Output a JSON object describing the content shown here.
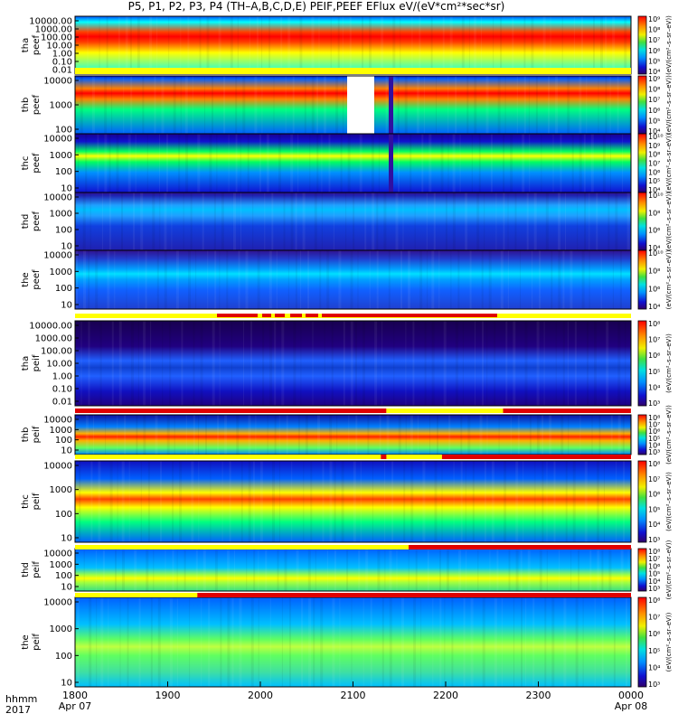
{
  "header": {
    "title": "P5, P1, P2, P3, P4 (TH–A,B,C,D,E) PEIF,PEEF EFlux eV/(eV*cm²*sec*sr)"
  },
  "footer": {
    "time_label": "hhmm",
    "year_label": "2017"
  },
  "chart_data": {
    "type": "heatmap",
    "x_axis": {
      "ticks": [
        "1800",
        "1900",
        "2000",
        "2100",
        "2200",
        "2300",
        "0000"
      ],
      "date_labels": [
        "Apr 07",
        "",
        "",
        "",
        "",
        "",
        "Apr 08"
      ],
      "range": [
        "2017-04-07 18:00",
        "2017-04-08 00:00"
      ]
    },
    "colorbar_label": "[eV/(cm²–s–sr–eV)]",
    "panels": [
      {
        "name": "tha peef",
        "ylabel": [
          "tha",
          "peef"
        ],
        "yticks": [
          "10000.00",
          "1000.00",
          "100.00",
          "10.00",
          "1.00",
          "0.10",
          "0.01"
        ],
        "cbar_ticks": [
          "10⁹",
          "10⁸",
          "10⁷",
          "10⁶",
          "10⁵",
          "10⁴"
        ],
        "cbar_label": "(eV/(cm²–s–sr–eV))"
      },
      {
        "name": "thb peef",
        "ylabel": [
          "thb",
          "peef"
        ],
        "yticks": [
          "10000",
          "1000",
          "100"
        ],
        "cbar_ticks": [
          "10⁹",
          "10⁸",
          "10⁷",
          "10⁶",
          "10⁵",
          "10⁴"
        ],
        "cbar_label": "(eV/(cm²–s–sr–eV))"
      },
      {
        "name": "thc peef",
        "ylabel": [
          "thc",
          "peef"
        ],
        "yticks": [
          "10000",
          "1000",
          "100",
          "10"
        ],
        "cbar_ticks": [
          "10¹⁰",
          "10⁹",
          "10⁸",
          "10⁷",
          "10⁶",
          "10⁵",
          "10⁴"
        ],
        "cbar_label": "(eV/(cm²–s–sr–eV))"
      },
      {
        "name": "thd peef",
        "ylabel": [
          "thd",
          "peef"
        ],
        "yticks": [
          "10000",
          "1000",
          "100",
          "10"
        ],
        "cbar_ticks": [
          "10¹⁰",
          "10⁸",
          "10⁶",
          "10⁴"
        ],
        "cbar_label": "(eV/(cm²–s–sr–eV))"
      },
      {
        "name": "the peef",
        "ylabel": [
          "the",
          "peef"
        ],
        "yticks": [
          "10000",
          "1000",
          "100",
          "10"
        ],
        "cbar_ticks": [
          "10¹⁰",
          "10⁸",
          "10⁶",
          "10⁴"
        ],
        "cbar_label": "(eV/(cm²–s–sr–eV))"
      },
      {
        "name": "tha peif",
        "ylabel": [
          "tha",
          "peif"
        ],
        "yticks": [
          "10000.00",
          "1000.00",
          "100.00",
          "10.00",
          "1.00",
          "0.10",
          "0.01"
        ],
        "cbar_ticks": [
          "10⁸",
          "10⁷",
          "10⁶",
          "10⁵",
          "10⁴",
          "10³"
        ],
        "cbar_label": "(eV/(cm²–s–sr–eV))"
      },
      {
        "name": "thb peif",
        "ylabel": [
          "thb",
          "peif"
        ],
        "yticks": [
          "10000",
          "1000",
          "100",
          "10"
        ],
        "cbar_ticks": [
          "10⁸",
          "10⁷",
          "10⁶",
          "10⁵",
          "10⁴",
          "10³"
        ],
        "cbar_label": "(eV/(cm²–s–sr–eV))"
      },
      {
        "name": "thc peif",
        "ylabel": [
          "thc",
          "peif"
        ],
        "yticks": [
          "10000",
          "1000",
          "100",
          "10"
        ],
        "cbar_ticks": [
          "10⁸",
          "10⁷",
          "10⁶",
          "10⁵",
          "10⁴",
          "10³"
        ],
        "cbar_label": "(eV/(cm²–s–sr–eV))"
      },
      {
        "name": "thd peif",
        "ylabel": [
          "thd",
          "peif"
        ],
        "yticks": [
          "10000",
          "1000",
          "100",
          "10"
        ],
        "cbar_ticks": [
          "10⁸",
          "10⁷",
          "10⁶",
          "10⁵",
          "10⁴",
          "10³"
        ],
        "cbar_label": "(eV/(cm²–s–sr–eV))"
      },
      {
        "name": "the peif",
        "ylabel": [
          "the",
          "peif"
        ],
        "yticks": [
          "10000",
          "1000",
          "100",
          "10"
        ],
        "cbar_ticks": [
          "10⁸",
          "10⁷",
          "10⁶",
          "10⁵",
          "10⁴",
          "10³"
        ],
        "cbar_label": "(eV/(cm²–s–sr–eV))"
      }
    ]
  }
}
